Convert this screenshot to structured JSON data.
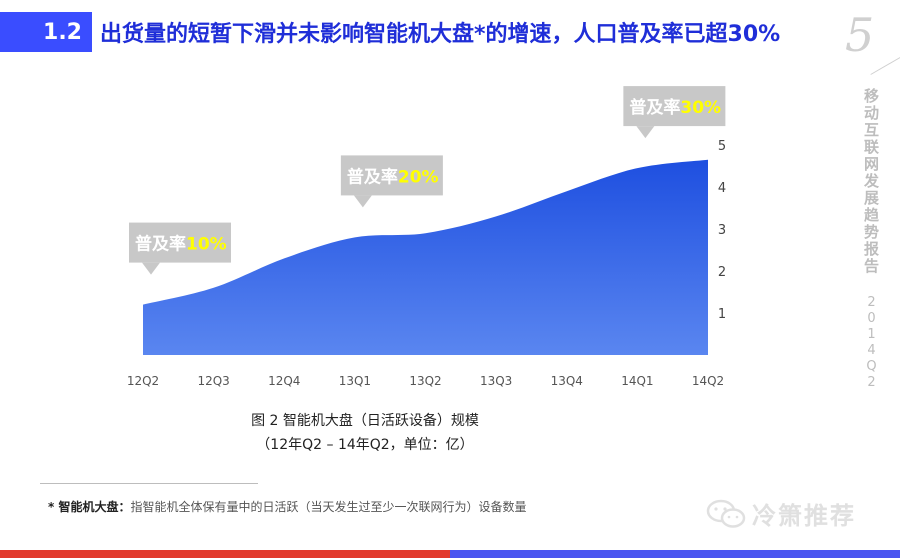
{
  "header": {
    "section_number": "1.2",
    "title": "出货量的短暂下滑并未影响智能机大盘*的增速，人口普及率已超30%",
    "page_number": "5"
  },
  "side_caption": {
    "title": "移动互联网发展趋势报告",
    "period": "2014Q2"
  },
  "figure": {
    "title": "图 2 智能机大盘（日活跃设备）规模",
    "subtitle": "（12年Q2 – 14年Q2，单位：亿）"
  },
  "footnote": {
    "term": "* 智能机大盘：",
    "text": "指智能机全体保有量中的日活跃（当天发生过至少一次联网行为）设备数量"
  },
  "watermark": {
    "text": "冷箫推荐"
  },
  "colors": {
    "accent_blue": "#3a4dff",
    "title_blue": "#1f2ed8",
    "area_top": "#1e4fe0",
    "area_bottom": "#5a86f0",
    "callout_bg": "#c8c8c8",
    "callout_highlight": "#ffff00",
    "bar_red": "#e23a2c",
    "bar_blue": "#4a55f0"
  },
  "chart_data": {
    "type": "area",
    "categories": [
      "12Q2",
      "12Q3",
      "12Q4",
      "13Q1",
      "13Q2",
      "13Q3",
      "13Q4",
      "14Q1",
      "14Q2"
    ],
    "values": [
      1.2,
      1.6,
      2.3,
      2.8,
      2.9,
      3.3,
      3.9,
      4.45,
      4.65
    ],
    "ylim": [
      0,
      5
    ],
    "yticks": [
      1,
      2,
      3,
      4,
      5
    ],
    "y_axis_side": "right",
    "grid": false,
    "annotations": [
      {
        "category": "12Q2",
        "label": "普及率",
        "value_text": "10%"
      },
      {
        "category": "13Q1",
        "label": "普及率",
        "value_text": "20%"
      },
      {
        "category": "14Q1",
        "label": "普及率",
        "value_text": "30%"
      }
    ]
  }
}
